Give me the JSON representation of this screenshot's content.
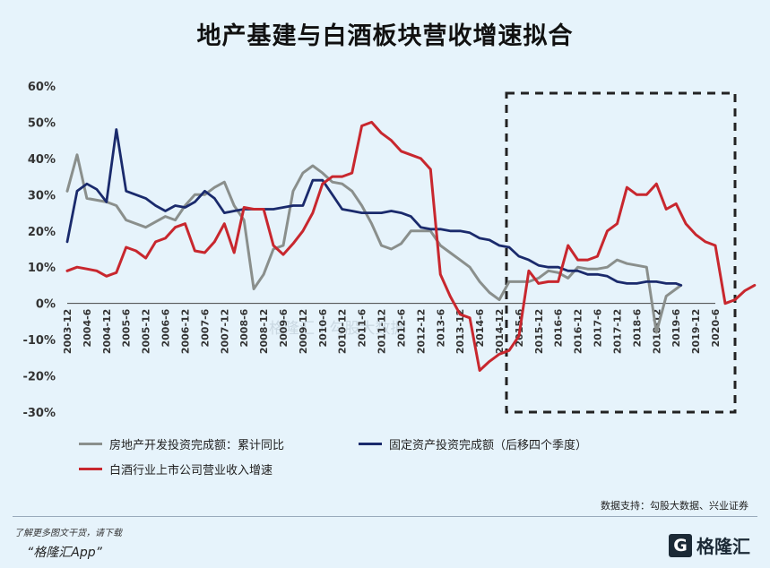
{
  "title": "地产基建与白酒板块营收增速拟合",
  "watermark": "格隆汇 | 勾股大数据",
  "chart_data": {
    "type": "line",
    "ylim": [
      -30,
      60
    ],
    "y_ticks": [
      "60%",
      "50%",
      "40%",
      "30%",
      "20%",
      "10%",
      "0%",
      "-10%",
      "-20%",
      "-30%"
    ],
    "x_labels": [
      "2003-12",
      "2004-6",
      "2004-12",
      "2005-6",
      "2005-12",
      "2006-6",
      "2006-12",
      "2007-6",
      "2007-12",
      "2008-6",
      "2008-12",
      "2009-6",
      "2009-12",
      "2010-6",
      "2010-12",
      "2011-6",
      "2011-12",
      "2012-6",
      "2012-12",
      "2013-6",
      "2013-12",
      "2014-6",
      "2014-12",
      "2015-6",
      "2015-12",
      "2016-6",
      "2016-12",
      "2017-6",
      "2017-12",
      "2018-6",
      "2018-12",
      "2019-6",
      "2019-12",
      "2020-6"
    ],
    "highlight_box": {
      "from": "2014-12",
      "to": "2020-6"
    },
    "series": [
      {
        "name": "房地产开发投资完成额：累计同比",
        "color": "#8a8f8c",
        "points": [
          [
            0,
            31
          ],
          [
            0.5,
            41
          ],
          [
            1,
            29
          ],
          [
            2,
            28
          ],
          [
            2.5,
            27
          ],
          [
            3,
            23
          ],
          [
            4,
            21
          ],
          [
            5,
            24
          ],
          [
            5.5,
            23
          ],
          [
            6,
            27
          ],
          [
            6.5,
            30
          ],
          [
            7,
            30
          ],
          [
            7.5,
            32
          ],
          [
            8,
            33.5
          ],
          [
            8.5,
            27
          ],
          [
            9,
            23
          ],
          [
            9.5,
            4
          ],
          [
            10,
            8
          ],
          [
            10.5,
            15
          ],
          [
            11,
            16
          ],
          [
            11.5,
            31
          ],
          [
            12,
            36
          ],
          [
            12.5,
            38
          ],
          [
            13,
            36
          ],
          [
            13.5,
            33.5
          ],
          [
            14,
            33
          ],
          [
            14.5,
            31
          ],
          [
            15,
            27
          ],
          [
            15.5,
            22
          ],
          [
            16,
            16
          ],
          [
            16.5,
            15
          ],
          [
            17,
            16.5
          ],
          [
            17.5,
            20
          ],
          [
            18,
            20
          ],
          [
            18.5,
            20
          ],
          [
            19,
            16
          ],
          [
            19.5,
            14
          ],
          [
            20,
            12
          ],
          [
            20.5,
            10
          ],
          [
            21,
            6
          ],
          [
            21.5,
            3
          ],
          [
            22,
            1
          ],
          [
            22.5,
            6
          ],
          [
            23,
            6
          ],
          [
            23.5,
            6
          ],
          [
            24,
            7
          ],
          [
            24.5,
            9
          ],
          [
            25,
            8.5
          ],
          [
            25.5,
            7
          ],
          [
            26,
            10
          ],
          [
            26.5,
            9.5
          ],
          [
            27,
            9.5
          ],
          [
            27.5,
            10
          ],
          [
            28,
            12
          ],
          [
            28.5,
            11
          ],
          [
            29,
            10.5
          ],
          [
            29.5,
            10
          ],
          [
            30,
            -8
          ],
          [
            30.5,
            2
          ],
          [
            31,
            4
          ],
          [
            31.25,
            5
          ]
        ]
      },
      {
        "name": "固定资产投资完成额（后移四个季度）",
        "color": "#1a2a6c",
        "points": [
          [
            0,
            17
          ],
          [
            0.5,
            31
          ],
          [
            1,
            33
          ],
          [
            1.5,
            31.5
          ],
          [
            2,
            28
          ],
          [
            2.5,
            48
          ],
          [
            3,
            31
          ],
          [
            4,
            29
          ],
          [
            4.5,
            27
          ],
          [
            5,
            25.5
          ],
          [
            5.5,
            27
          ],
          [
            6,
            26.5
          ],
          [
            6.5,
            28
          ],
          [
            7,
            31
          ],
          [
            7.5,
            29
          ],
          [
            8,
            25
          ],
          [
            8.5,
            25.5
          ],
          [
            9,
            26
          ],
          [
            9.5,
            26
          ],
          [
            10,
            26
          ],
          [
            10.5,
            26
          ],
          [
            11,
            26.5
          ],
          [
            11.5,
            27
          ],
          [
            12,
            27
          ],
          [
            12.5,
            34
          ],
          [
            13,
            34
          ],
          [
            13.5,
            30
          ],
          [
            14,
            26
          ],
          [
            14.5,
            25.5
          ],
          [
            15,
            25
          ],
          [
            15.5,
            25
          ],
          [
            16,
            25
          ],
          [
            16.5,
            25.5
          ],
          [
            17,
            25
          ],
          [
            17.5,
            24
          ],
          [
            18,
            21
          ],
          [
            18.5,
            20.5
          ],
          [
            19,
            20.5
          ],
          [
            19.5,
            20
          ],
          [
            20,
            20
          ],
          [
            20.5,
            19.5
          ],
          [
            21,
            18
          ],
          [
            21.5,
            17.5
          ],
          [
            22,
            16
          ],
          [
            22.5,
            15.5
          ],
          [
            23,
            13
          ],
          [
            23.5,
            12
          ],
          [
            24,
            10.5
          ],
          [
            24.5,
            10
          ],
          [
            25,
            10
          ],
          [
            25.5,
            9
          ],
          [
            26,
            9
          ],
          [
            26.5,
            8
          ],
          [
            27,
            8
          ],
          [
            27.5,
            7.5
          ],
          [
            28,
            6
          ],
          [
            28.5,
            5.5
          ],
          [
            29,
            5.5
          ],
          [
            29.5,
            6
          ],
          [
            30,
            6
          ],
          [
            30.5,
            5.5
          ],
          [
            31,
            5.5
          ],
          [
            31.25,
            5
          ]
        ]
      },
      {
        "name": "白酒行业上市公司营业收入增速",
        "color": "#c8272e",
        "points": [
          [
            0,
            9
          ],
          [
            0.5,
            10
          ],
          [
            1,
            9.5
          ],
          [
            1.5,
            9
          ],
          [
            2,
            7.5
          ],
          [
            2.5,
            8.5
          ],
          [
            3,
            15.5
          ],
          [
            3.5,
            14.5
          ],
          [
            4,
            12.5
          ],
          [
            4.5,
            17
          ],
          [
            5,
            18
          ],
          [
            5.5,
            21
          ],
          [
            6,
            22
          ],
          [
            6.5,
            14.5
          ],
          [
            7,
            14
          ],
          [
            7.5,
            17
          ],
          [
            8,
            22
          ],
          [
            8.5,
            14
          ],
          [
            9,
            26.5
          ],
          [
            9.5,
            26
          ],
          [
            10,
            26
          ],
          [
            10.5,
            16
          ],
          [
            11,
            13.5
          ],
          [
            11.5,
            16.5
          ],
          [
            12,
            20
          ],
          [
            12.5,
            25
          ],
          [
            13,
            33
          ],
          [
            13.5,
            35
          ],
          [
            14,
            35
          ],
          [
            14.5,
            36
          ],
          [
            15,
            49
          ],
          [
            15.5,
            50
          ],
          [
            16,
            47
          ],
          [
            16.5,
            45
          ],
          [
            17,
            42
          ],
          [
            17.5,
            41
          ],
          [
            18,
            40
          ],
          [
            18.5,
            37
          ],
          [
            19,
            8
          ],
          [
            19.5,
            2
          ],
          [
            20,
            -3
          ],
          [
            20.5,
            -4
          ],
          [
            21,
            -18.5
          ],
          [
            21.5,
            -16
          ],
          [
            22,
            -14
          ],
          [
            22.5,
            -13
          ],
          [
            23,
            -9
          ],
          [
            23.5,
            9
          ],
          [
            24,
            5.5
          ],
          [
            24.5,
            6
          ],
          [
            25,
            6
          ],
          [
            25.5,
            16
          ],
          [
            26,
            12
          ],
          [
            26.5,
            12
          ],
          [
            27,
            13
          ],
          [
            27.5,
            20
          ],
          [
            28,
            22
          ],
          [
            28.5,
            32
          ],
          [
            29,
            30
          ],
          [
            29.5,
            30
          ],
          [
            30,
            33
          ],
          [
            30.5,
            26
          ],
          [
            31,
            27.5
          ],
          [
            31.5,
            22
          ],
          [
            32,
            19
          ],
          [
            32.5,
            17
          ],
          [
            33,
            16
          ],
          [
            33.5,
            0
          ],
          [
            34,
            1
          ],
          [
            34.5,
            3.5
          ],
          [
            35,
            5
          ]
        ]
      }
    ]
  },
  "source": "数据支持：勾股大数据、兴业证券",
  "footer": {
    "note": "了解更多图文干货，请下载",
    "app": "“格隆汇App”"
  },
  "brand": {
    "icon": "G",
    "name": "格隆汇"
  }
}
